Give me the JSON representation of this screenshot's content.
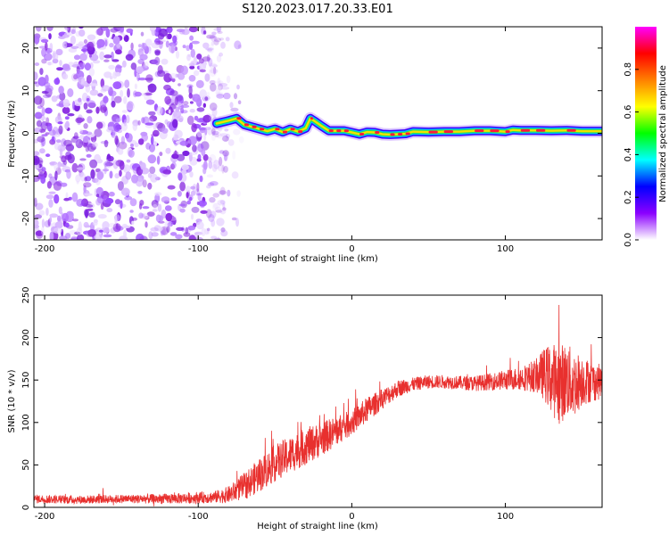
{
  "figure": {
    "title": "S120.2023.017.20.33.E01"
  },
  "chart_data": [
    {
      "type": "heatmap",
      "title": "",
      "xlabel": "Height of straight line (km)",
      "ylabel": "Frequency (Hz)",
      "xlim": [
        -207,
        163
      ],
      "ylim": [
        -25,
        25
      ],
      "xticks": [
        -200,
        -100,
        0,
        100
      ],
      "yticks": [
        -20,
        -10,
        0,
        10,
        20
      ],
      "noise_region_x": [
        -207,
        -82
      ],
      "ridge": {
        "name": "",
        "x": [
          -88,
          -80,
          -75,
          -70,
          -65,
          -60,
          -55,
          -50,
          -45,
          -40,
          -35,
          -30,
          -27,
          -24,
          -20,
          -15,
          -10,
          -5,
          0,
          5,
          10,
          15,
          20,
          25,
          30,
          35,
          40,
          50,
          60,
          70,
          80,
          90,
          100,
          105,
          110,
          120,
          130,
          140,
          150,
          163
        ],
        "y": [
          2.3,
          3.0,
          3.5,
          2.0,
          1.5,
          1.0,
          0.5,
          1.0,
          0.3,
          1.0,
          0.4,
          1.2,
          3.5,
          2.8,
          1.8,
          0.6,
          0.6,
          0.6,
          0.2,
          -0.2,
          0.3,
          0.2,
          -0.2,
          -0.3,
          -0.2,
          -0.1,
          0.4,
          0.3,
          0.4,
          0.4,
          0.6,
          0.6,
          0.4,
          0.8,
          0.7,
          0.7,
          0.6,
          0.7,
          0.5,
          0.5
        ]
      },
      "colorbar": {
        "label": "Normalized spectral amplitude",
        "range": [
          0,
          1
        ],
        "ticks": [
          "0.0",
          "0.2",
          "0.4",
          "0.6",
          "0.8"
        ],
        "colors": [
          "#ffffff",
          "#8b00ff",
          "#0000ff",
          "#00ffff",
          "#00ff00",
          "#ffff00",
          "#ff8000",
          "#ff0000",
          "#ff00ff"
        ]
      }
    },
    {
      "type": "line",
      "title": "",
      "xlabel": "Height of straight line (km)",
      "ylabel": "SNR (10 * v/v)",
      "xlim": [
        -207,
        163
      ],
      "ylim": [
        0,
        250
      ],
      "xticks": [
        -200,
        -100,
        0,
        100
      ],
      "yticks": [
        0,
        50,
        100,
        150,
        200,
        250
      ],
      "color": "#e8302e",
      "series": [
        {
          "name": "",
          "x": [
            -207,
            -180,
            -150,
            -120,
            -90,
            -80,
            -70,
            -60,
            -50,
            -40,
            -30,
            -20,
            -10,
            0,
            10,
            20,
            30,
            40,
            50,
            60,
            70,
            80,
            90,
            100,
            110,
            120,
            125,
            130,
            135,
            140,
            145,
            150,
            155,
            163
          ],
          "y": [
            10,
            9,
            10,
            10,
            12,
            15,
            25,
            38,
            52,
            62,
            72,
            80,
            90,
            100,
            115,
            128,
            140,
            145,
            148,
            148,
            147,
            146,
            148,
            150,
            152,
            155,
            157,
            152,
            145,
            150,
            145,
            150,
            148,
            148
          ],
          "noise_amplitude": [
            5,
            5,
            5,
            6,
            7,
            10,
            16,
            20,
            22,
            22,
            22,
            20,
            18,
            15,
            15,
            12,
            10,
            8,
            8,
            8,
            8,
            9,
            10,
            12,
            14,
            20,
            30,
            42,
            48,
            44,
            40,
            30,
            25,
            20
          ]
        }
      ]
    }
  ]
}
